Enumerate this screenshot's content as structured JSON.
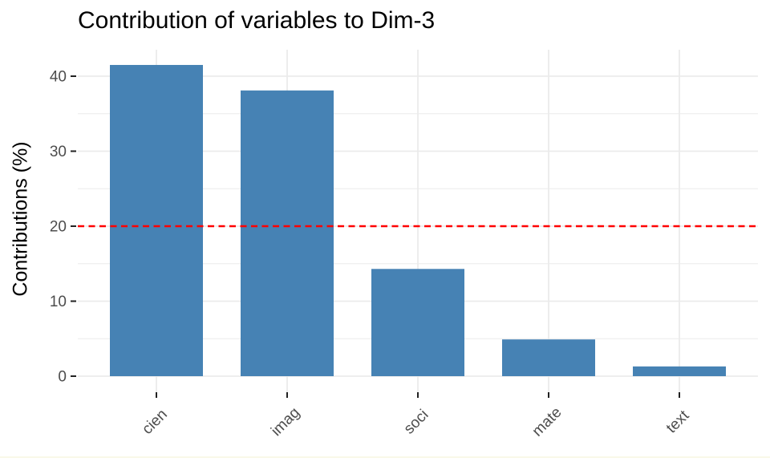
{
  "figure": {
    "title": "Contribution of variables to Dim-3",
    "y_axis_title": "Contributions (%)"
  },
  "chart_data": {
    "type": "bar",
    "title": "Contribution of variables to Dim-3",
    "xlabel": "",
    "ylabel": "Contributions (%)",
    "categories": [
      "cien",
      "imag",
      "soci",
      "mate",
      "text"
    ],
    "values": [
      41.5,
      38.1,
      14.3,
      4.9,
      1.3
    ],
    "y_major_ticks": [
      0,
      10,
      20,
      30,
      40
    ],
    "y_minor_ticks": [
      5,
      15,
      25,
      35
    ],
    "ylim": [
      -2.1,
      43.5
    ],
    "reference_line": {
      "value": 20,
      "color": "#FF0000",
      "style": "dashed"
    },
    "bar_color": "#4682B4",
    "grid": true,
    "gridline_color": "#EBEBEB",
    "axis_text_color": "#4D4D4D",
    "axis_tick_color": "#222222",
    "x_tick_rotation_deg": 45,
    "legend_position": "none"
  }
}
